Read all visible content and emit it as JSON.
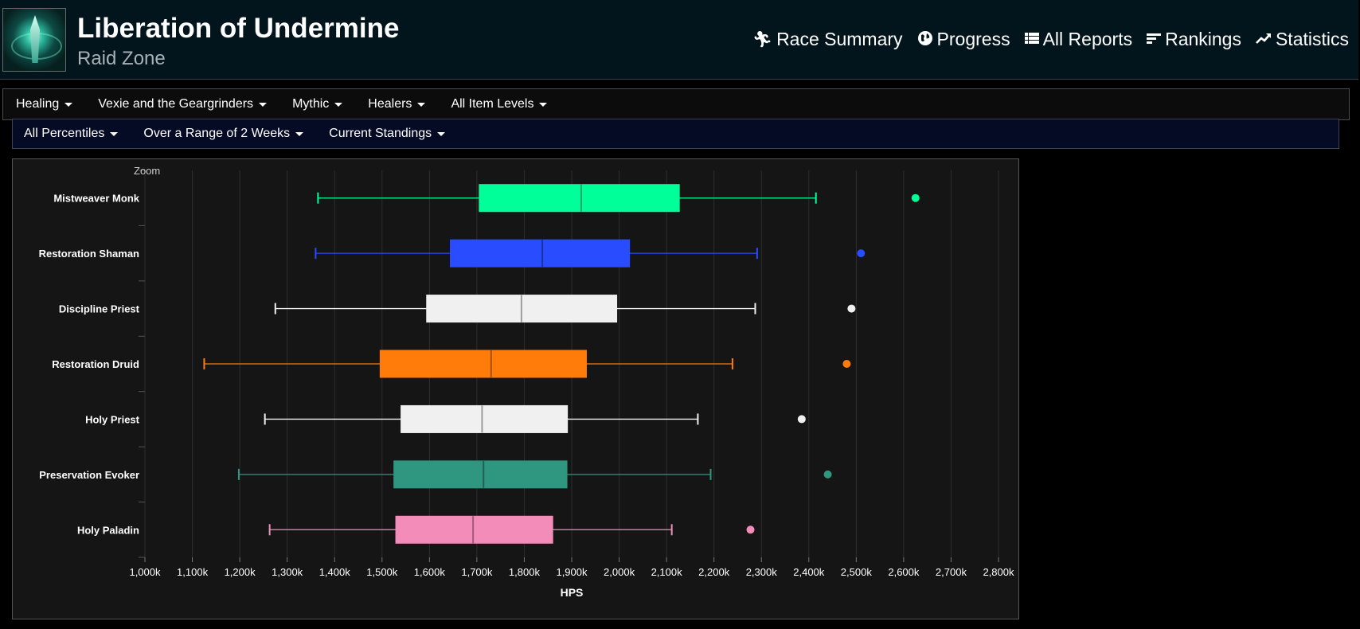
{
  "header": {
    "title": "Liberation of Undermine",
    "subtitle": "Raid Zone",
    "nav": [
      {
        "label": "Race Summary",
        "icon": "runner-icon"
      },
      {
        "label": "Progress",
        "icon": "globe-icon"
      },
      {
        "label": "All Reports",
        "icon": "list-icon"
      },
      {
        "label": "Rankings",
        "icon": "bars-icon"
      },
      {
        "label": "Statistics",
        "icon": "trend-icon"
      }
    ]
  },
  "filters": {
    "row1": [
      "Healing",
      "Vexie and the Geargrinders",
      "Mythic",
      "Healers",
      "All Item Levels"
    ],
    "row2": [
      "All Percentiles",
      "Over a Range of 2 Weeks",
      "Current Standings"
    ]
  },
  "chart": {
    "zoom_label": "Zoom"
  },
  "chart_data": {
    "type": "boxplot",
    "orientation": "horizontal",
    "xlabel": "HPS",
    "xlim": [
      1000,
      2800
    ],
    "x_tick_labels": [
      "1,000k",
      "1,100k",
      "1,200k",
      "1,300k",
      "1,400k",
      "1,500k",
      "1,600k",
      "1,700k",
      "1,800k",
      "1,900k",
      "2,000k",
      "2,100k",
      "2,200k",
      "2,300k",
      "2,400k",
      "2,500k",
      "2,600k",
      "2,700k",
      "2,800k"
    ],
    "x_ticks": [
      1000,
      1100,
      1200,
      1300,
      1400,
      1500,
      1600,
      1700,
      1800,
      1900,
      2000,
      2100,
      2200,
      2300,
      2400,
      2500,
      2600,
      2700,
      2800
    ],
    "grid": true,
    "series": [
      {
        "name": "Mistweaver Monk",
        "color": "#00ff98",
        "min": 1365,
        "q1": 1705,
        "median": 1920,
        "q3": 2127,
        "max": 2415,
        "outliers": [
          2625
        ]
      },
      {
        "name": "Restoration Shaman",
        "color": "#2a4cff",
        "min": 1360,
        "q1": 1644,
        "median": 1838,
        "q3": 2022,
        "max": 2291,
        "outliers": [
          2510
        ]
      },
      {
        "name": "Discipline Priest",
        "color": "#f0f0f0",
        "min": 1275,
        "q1": 1594,
        "median": 1794,
        "q3": 1995,
        "max": 2287,
        "outliers": [
          2490
        ]
      },
      {
        "name": "Restoration Druid",
        "color": "#ff7c0a",
        "min": 1125,
        "q1": 1496,
        "median": 1730,
        "q3": 1931,
        "max": 2239,
        "outliers": [
          2480
        ]
      },
      {
        "name": "Holy Priest",
        "color": "#f0f0f0",
        "min": 1253,
        "q1": 1540,
        "median": 1711,
        "q3": 1891,
        "max": 2166,
        "outliers": [
          2385
        ]
      },
      {
        "name": "Preservation Evoker",
        "color": "#2f9680",
        "min": 1198,
        "q1": 1525,
        "median": 1714,
        "q3": 1890,
        "max": 2193,
        "outliers": [
          2440
        ]
      },
      {
        "name": "Holy Paladin",
        "color": "#f48cba",
        "min": 1263,
        "q1": 1529,
        "median": 1692,
        "q3": 1860,
        "max": 2111,
        "outliers": [
          2277
        ]
      }
    ]
  }
}
